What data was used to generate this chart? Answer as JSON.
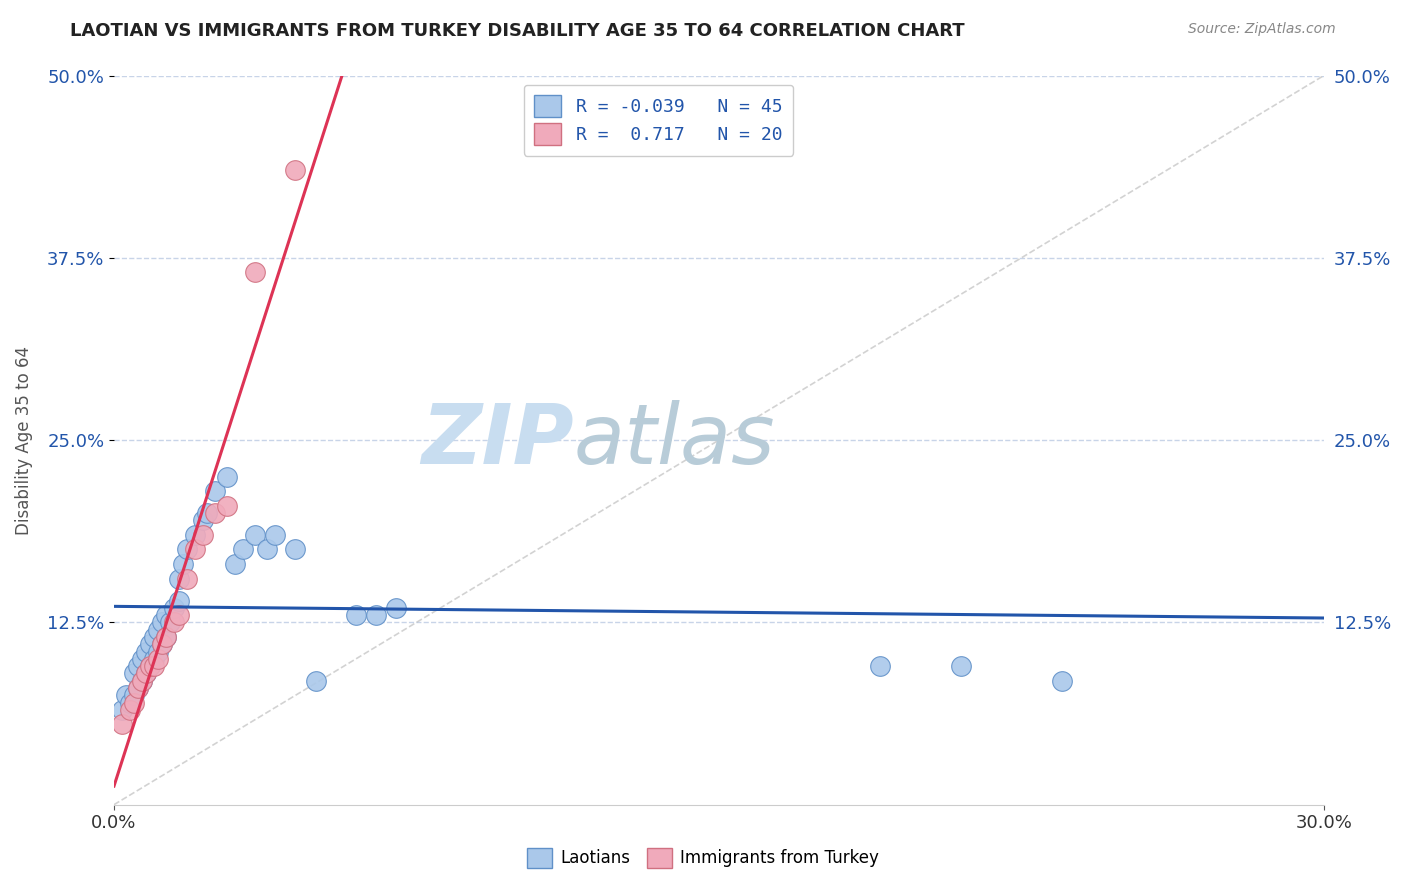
{
  "title": "LAOTIAN VS IMMIGRANTS FROM TURKEY DISABILITY AGE 35 TO 64 CORRELATION CHART",
  "source_text": "Source: ZipAtlas.com",
  "ylabel": "Disability Age 35 to 64",
  "xlim": [
    0.0,
    0.3
  ],
  "ylim": [
    0.0,
    0.5
  ],
  "ytick_values": [
    0.125,
    0.25,
    0.375,
    0.5
  ],
  "ytick_labels": [
    "12.5%",
    "25.0%",
    "37.5%",
    "50.0%"
  ],
  "xtick_values": [
    0.0,
    0.3
  ],
  "xtick_labels": [
    "0.0%",
    "30.0%"
  ],
  "R_laotian": -0.039,
  "N_laotian": 45,
  "R_turkey": 0.717,
  "N_turkey": 20,
  "blue_line_color": "#2255aa",
  "pink_line_color": "#dd3355",
  "scatter_blue_color": "#aac8ea",
  "scatter_pink_color": "#f0aabb",
  "scatter_blue_edge": "#6090c8",
  "scatter_pink_edge": "#d07080",
  "background_color": "#ffffff",
  "grid_color": "#c8d4e8",
  "watermark_zip_color": "#c8ddf0",
  "watermark_atlas_color": "#b8ccd8",
  "laotian_x": [
    0.002,
    0.003,
    0.004,
    0.005,
    0.005,
    0.006,
    0.006,
    0.007,
    0.007,
    0.008,
    0.008,
    0.009,
    0.009,
    0.01,
    0.01,
    0.011,
    0.011,
    0.012,
    0.012,
    0.013,
    0.013,
    0.014,
    0.015,
    0.016,
    0.016,
    0.017,
    0.018,
    0.02,
    0.022,
    0.023,
    0.025,
    0.028,
    0.03,
    0.032,
    0.035,
    0.038,
    0.04,
    0.045,
    0.05,
    0.06,
    0.065,
    0.07,
    0.19,
    0.21,
    0.235
  ],
  "laotian_y": [
    0.065,
    0.075,
    0.07,
    0.075,
    0.09,
    0.08,
    0.095,
    0.085,
    0.1,
    0.09,
    0.105,
    0.095,
    0.11,
    0.1,
    0.115,
    0.105,
    0.12,
    0.11,
    0.125,
    0.115,
    0.13,
    0.125,
    0.135,
    0.14,
    0.155,
    0.165,
    0.175,
    0.185,
    0.195,
    0.2,
    0.215,
    0.225,
    0.165,
    0.175,
    0.185,
    0.175,
    0.185,
    0.175,
    0.085,
    0.13,
    0.13,
    0.135,
    0.095,
    0.095,
    0.085
  ],
  "turkey_x": [
    0.002,
    0.004,
    0.005,
    0.006,
    0.007,
    0.008,
    0.009,
    0.01,
    0.011,
    0.012,
    0.013,
    0.015,
    0.016,
    0.018,
    0.02,
    0.022,
    0.025,
    0.028,
    0.035,
    0.045
  ],
  "turkey_y": [
    0.055,
    0.065,
    0.07,
    0.08,
    0.085,
    0.09,
    0.095,
    0.095,
    0.1,
    0.11,
    0.115,
    0.125,
    0.13,
    0.155,
    0.175,
    0.185,
    0.2,
    0.205,
    0.365,
    0.435
  ]
}
